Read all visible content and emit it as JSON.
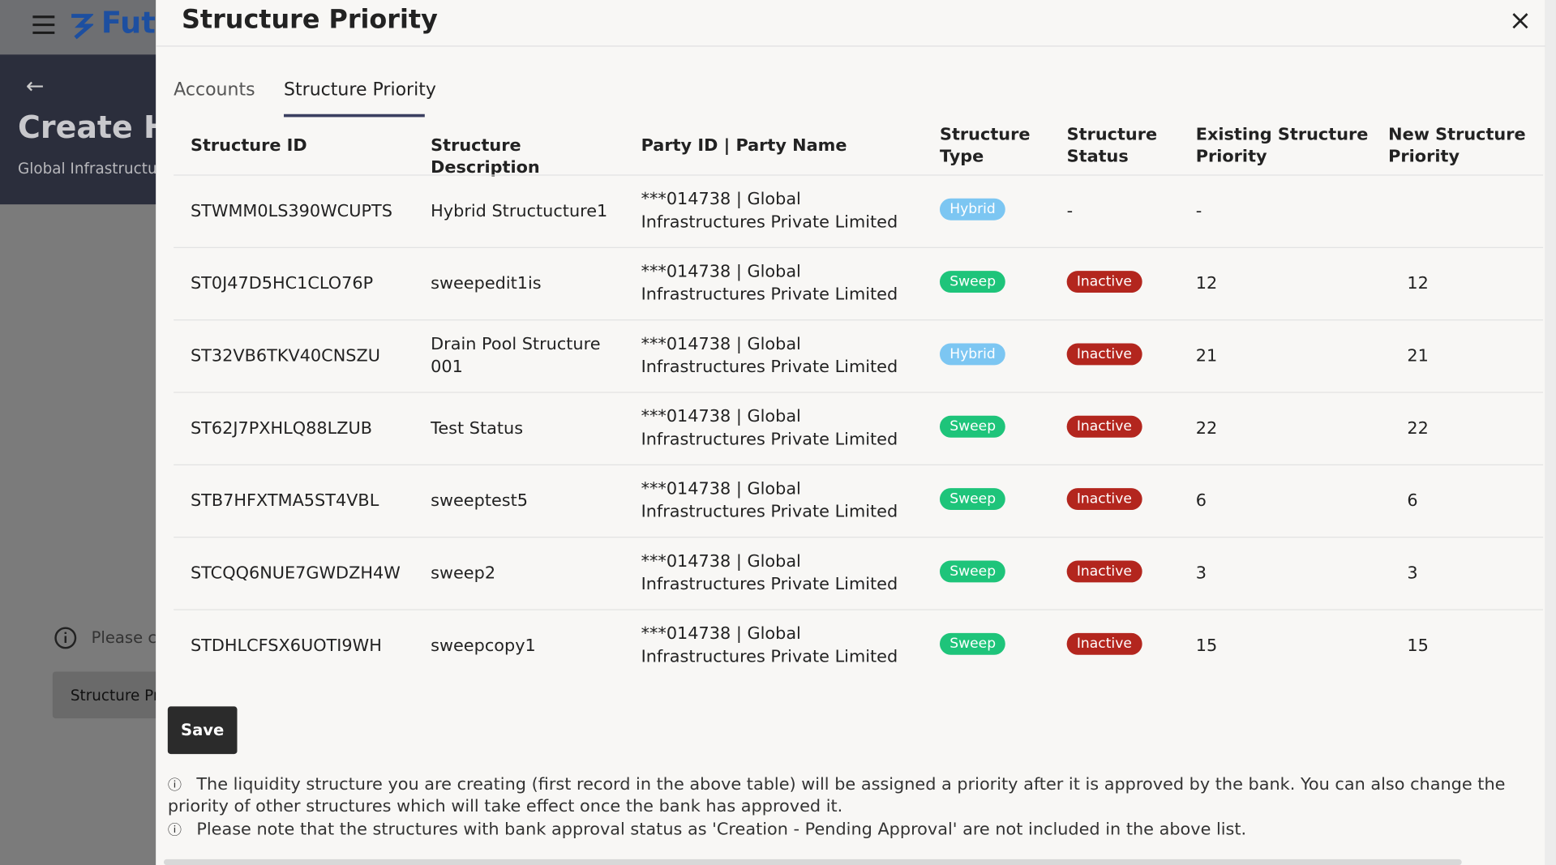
{
  "background": {
    "logo": "Futu",
    "page_title": "Create Hy",
    "page_subtitle": "Global Infrastructur",
    "info_text": "Please cli",
    "button": "Structure Pr"
  },
  "modal": {
    "title": "Structure Priority",
    "tabs": [
      "Accounts",
      "Structure Priority"
    ],
    "table": {
      "columns": [
        "Structure ID",
        "Structure Description",
        "Party ID | Party Name",
        "Structure Type",
        "Structure Status",
        "Existing Structure Priority",
        "New Structure Priority"
      ],
      "rows": [
        [
          "STWMM0LS390WCUPTS",
          "Hybrid Structucture1",
          "***014738 | Global Infrastructures Private Limited",
          "Hybrid",
          "-",
          "-",
          ""
        ],
        [
          "ST0J47D5HC1CLO76P",
          "sweepedit1is",
          "***014738 | Global Infrastructures Private Limited",
          "Sweep",
          "Inactive",
          "12",
          "12"
        ],
        [
          "ST32VB6TKV40CNSZU",
          "Drain Pool Structure 001",
          "***014738 | Global Infrastructures Private Limited",
          "Hybrid",
          "Inactive",
          "21",
          "21"
        ],
        [
          "ST62J7PXHLQ88LZUB",
          "Test Status",
          "***014738 | Global Infrastructures Private Limited",
          "Sweep",
          "Inactive",
          "22",
          "22"
        ],
        [
          "STB7HFXTMA5ST4VBL",
          "sweeptest5",
          "***014738 | Global Infrastructures Private Limited",
          "Sweep",
          "Inactive",
          "6",
          "6"
        ],
        [
          "STCQQ6NUE7GWDZH4W",
          "sweep2",
          "***014738 | Global Infrastructures Private Limited",
          "Sweep",
          "Inactive",
          "3",
          "3"
        ],
        [
          "STDHLCFSX6UOTI9WH",
          "sweepcopy1",
          "***014738 | Global Infrastructures Private Limited",
          "Sweep",
          "Inactive",
          "15",
          "15"
        ]
      ]
    },
    "save": "Save",
    "notes": [
      "The liquidity structure you are creating (first record in the above table) will be assigned a priority after it is approved by the bank. You can also change the priority of other structures which will take effect once the bank has approved it.",
      "Please note that the structures with bank approval status as 'Creation - Pending Approval' are not included in the above list."
    ]
  }
}
